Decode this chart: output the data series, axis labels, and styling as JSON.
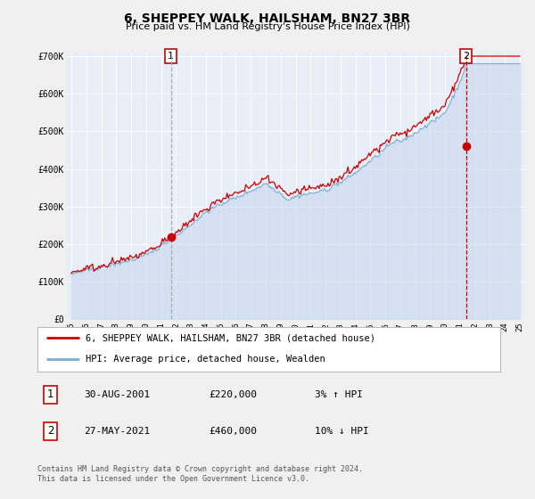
{
  "title": "6, SHEPPEY WALK, HAILSHAM, BN27 3BR",
  "subtitle": "Price paid vs. HM Land Registry's House Price Index (HPI)",
  "background_color": "#f0f0f0",
  "plot_bg_color": "#e8eef8",
  "legend_label_red": "6, SHEPPEY WALK, HAILSHAM, BN27 3BR (detached house)",
  "legend_label_blue": "HPI: Average price, detached house, Wealden",
  "annotation1_date": "30-AUG-2001",
  "annotation1_price": "£220,000",
  "annotation1_hpi": "3% ↑ HPI",
  "annotation2_date": "27-MAY-2021",
  "annotation2_price": "£460,000",
  "annotation2_hpi": "10% ↓ HPI",
  "footer1": "Contains HM Land Registry data © Crown copyright and database right 2024.",
  "footer2": "This data is licensed under the Open Government Licence v3.0.",
  "sale1_year": 2001.66,
  "sale1_value": 220000,
  "sale2_year": 2021.41,
  "sale2_value": 460000,
  "vline1_year": 2001.66,
  "vline2_year": 2021.41,
  "ylim_max": 700000,
  "ylim_min": 0,
  "xmin": 1994.7,
  "xmax": 2025.3,
  "red_line_color": "#cc0000",
  "blue_line_color": "#7bafd4",
  "blue_fill_color": "#c8d8ee",
  "vline_color1": "#aaaaaa",
  "vline_color2": "#cc0000",
  "grid_color": "#ffffff",
  "title_fontsize": 10,
  "subtitle_fontsize": 8
}
